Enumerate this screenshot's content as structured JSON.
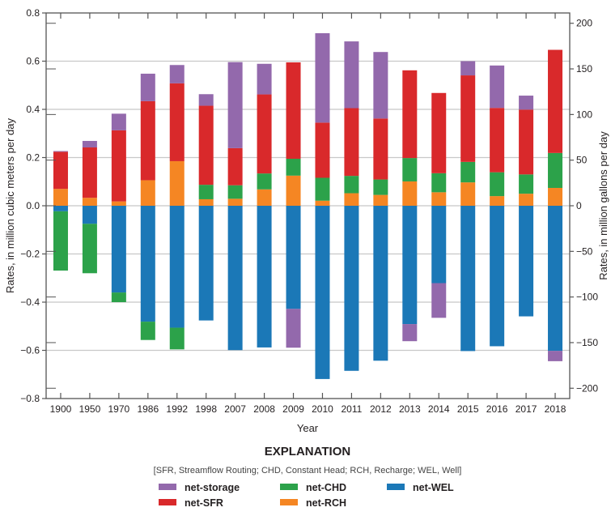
{
  "chart_data": {
    "type": "bar",
    "stacked": true,
    "xlabel": "Year",
    "ylabel": "Rates, in million cubic meters per day",
    "ylabel_right": "Rates, in million gallons per day",
    "ylim": [
      -0.8,
      0.8
    ],
    "ylim_right": [
      -211.3,
      211.3
    ],
    "yticks": [
      "0.8",
      "0.6",
      "0.4",
      "0.2",
      "0.0",
      "−0.2",
      "−0.4",
      "−0.6",
      "−0.8"
    ],
    "yticks_right": [
      "200",
      "150",
      "100",
      "50",
      "0",
      "−50",
      "−100",
      "−150",
      "−200"
    ],
    "grid": true,
    "categories": [
      "1900",
      "1950",
      "1970",
      "1986",
      "1992",
      "1998",
      "2007",
      "2008",
      "2009",
      "2010",
      "2011",
      "2012",
      "2013",
      "2014",
      "2015",
      "2016",
      "2017",
      "2018"
    ],
    "series": [
      {
        "name": "net-RCH",
        "color": "#f58623",
        "values": [
          0.07,
          0.033,
          0.018,
          0.106,
          0.185,
          0.027,
          0.029,
          0.068,
          0.125,
          0.021,
          0.052,
          0.045,
          0.101,
          0.056,
          0.097,
          0.04,
          0.05,
          0.074
        ]
      },
      {
        "name": "net-WEL",
        "color": "#1b78b7",
        "values": [
          -0.023,
          -0.075,
          -0.36,
          -0.481,
          -0.506,
          -0.476,
          -0.599,
          -0.588,
          -0.428,
          -0.719,
          -0.685,
          -0.643,
          -0.491,
          -0.321,
          -0.603,
          -0.583,
          -0.459,
          -0.602
        ]
      },
      {
        "name": "net-CHD",
        "color": "#2ca24a",
        "values": [
          -0.246,
          -0.205,
          -0.04,
          -0.076,
          -0.09,
          0.06,
          0.056,
          0.066,
          0.07,
          0.095,
          0.072,
          0.064,
          0.097,
          0.079,
          0.085,
          0.099,
          0.08,
          0.145
        ]
      },
      {
        "name": "net-SFR",
        "color": "#d9292b",
        "values": [
          0.154,
          0.209,
          0.295,
          0.328,
          0.323,
          0.328,
          0.154,
          0.328,
          0.4,
          0.229,
          0.281,
          0.253,
          0.364,
          0.333,
          0.359,
          0.267,
          0.269,
          0.428
        ]
      },
      {
        "name": "net-storage",
        "color": "#9369ac",
        "values": [
          0.003,
          0.027,
          0.069,
          0.114,
          0.076,
          0.048,
          0.357,
          0.127,
          -0.161,
          0.371,
          0.277,
          0.276,
          -0.071,
          -0.144,
          0.059,
          0.176,
          0.058,
          -0.043
        ]
      }
    ]
  },
  "legend": {
    "title": "EXPLANATION",
    "subtitle": "[SFR, Streamflow Routing; CHD, Constant Head; RCH, Recharge; WEL, Well]",
    "items": [
      {
        "label": "net-storage",
        "color": "#9369ac"
      },
      {
        "label": "net-SFR",
        "color": "#d9292b"
      },
      {
        "label": "net-CHD",
        "color": "#2ca24a"
      },
      {
        "label": "net-RCH",
        "color": "#f58623"
      },
      {
        "label": "net-WEL",
        "color": "#1b78b7"
      }
    ]
  }
}
